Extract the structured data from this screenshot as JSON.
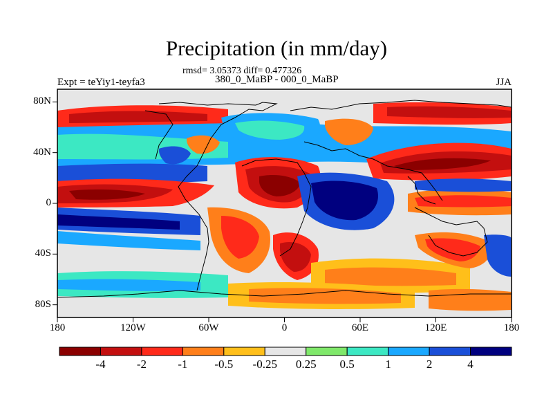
{
  "title": "Precipitation (in mm/day)",
  "stats": "rmsd= 3.05373 diff= 0.477326",
  "subtitle": "380_0_MaBP - 000_0_MaBP",
  "left_label": "Expt = teYiy1-teyfa3",
  "right_label": "JJA",
  "x_ticks": [
    "180",
    "120W",
    "60W",
    "0",
    "60E",
    "120E",
    "180"
  ],
  "y_ticks": [
    "80N",
    "40N",
    "0",
    "40S",
    "80S"
  ],
  "colorbar": {
    "colors": [
      "#8b0000",
      "#c30f0f",
      "#ff2a1a",
      "#ff7f1a",
      "#ffbf1a",
      "#e6e6e6",
      "#7fe86a",
      "#3ce8c3",
      "#1aa8ff",
      "#1a4fd8",
      "#00007f"
    ],
    "labels": [
      "-4",
      "-2",
      "-1",
      "-0.5",
      "-0.25",
      "0.25",
      "0.5",
      "1",
      "2",
      "4"
    ]
  }
}
